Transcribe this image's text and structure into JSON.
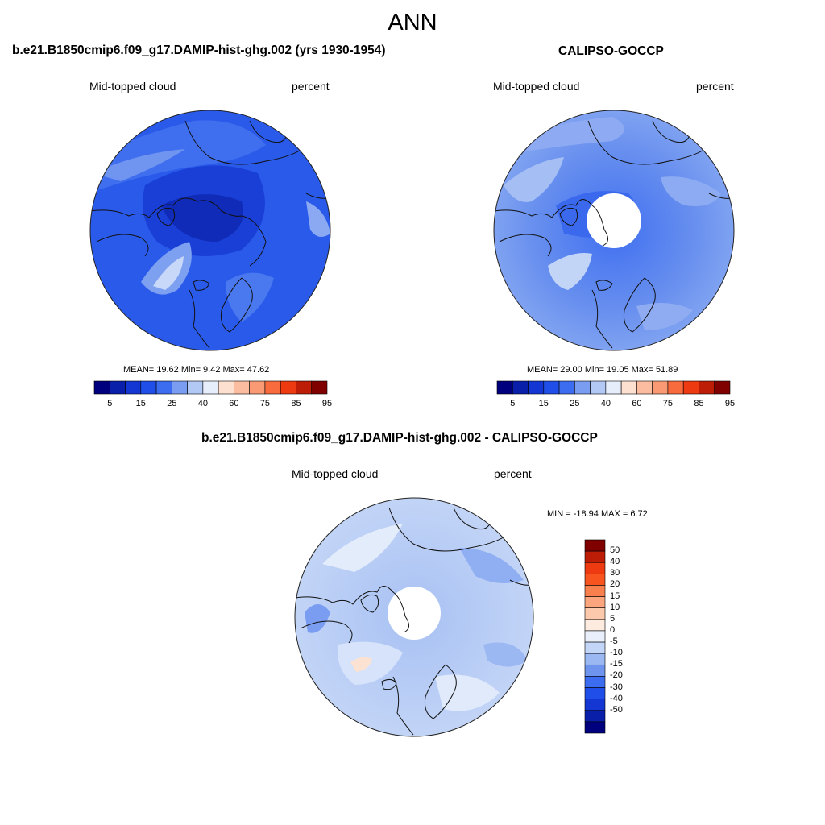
{
  "main_title": "ANN",
  "panels": [
    {
      "title": "b.e21.B1850cmip6.f09_g17.DAMIP-hist-ghg.002 (yrs 1930-1954)",
      "variable": "Mid-topped cloud",
      "units": "percent",
      "stats": "MEAN=  19.62  Min=   9.42  Max=  47.62",
      "colorbar_labels": [
        "5",
        "15",
        "25",
        "40",
        "60",
        "75",
        "85",
        "95"
      ]
    },
    {
      "title": "CALIPSO-GOCCP",
      "variable": "Mid-topped cloud",
      "units": "percent",
      "stats": "MEAN=  29.00  Min=  19.05  Max=  51.89",
      "colorbar_labels": [
        "5",
        "15",
        "25",
        "40",
        "60",
        "75",
        "85",
        "95"
      ]
    },
    {
      "title": "b.e21.B1850cmip6.f09_g17.DAMIP-hist-ghg.002 - CALIPSO-GOCCP",
      "variable": "Mid-topped cloud",
      "units": "percent",
      "stats": "MIN = -18.94 MAX =   6.72",
      "colorbar_labels": [
        "50",
        "40",
        "30",
        "20",
        "15",
        "10",
        "5",
        "0",
        "-5",
        "-10",
        "-15",
        "-20",
        "-30",
        "-40",
        "-50"
      ]
    }
  ],
  "colors": {
    "abs_scale": [
      "#00007f",
      "#0a1fa9",
      "#1437d4",
      "#1f4fe8",
      "#3c6cef",
      "#7a9df2",
      "#b2c9f6",
      "#e6eefb",
      "#fde0cf",
      "#fcbca0",
      "#f99a74",
      "#f76b3c",
      "#ee3a10",
      "#bd1c06",
      "#800000"
    ],
    "diff_scale": [
      "#800000",
      "#bd1c06",
      "#ee3a10",
      "#f7541f",
      "#f8804f",
      "#fba57f",
      "#fdc9ad",
      "#fdebe0",
      "#eaf0fb",
      "#c4d6f7",
      "#9bb8f2",
      "#6f94ee",
      "#3c6cef",
      "#1f4fe8",
      "#1437d4",
      "#0a1fa9",
      "#00007f"
    ],
    "model_map_base": "#2a5aea",
    "obs_map_base": "#5f89ee",
    "diff_map_base": "#b4cbf4",
    "coastline": "#111111"
  }
}
